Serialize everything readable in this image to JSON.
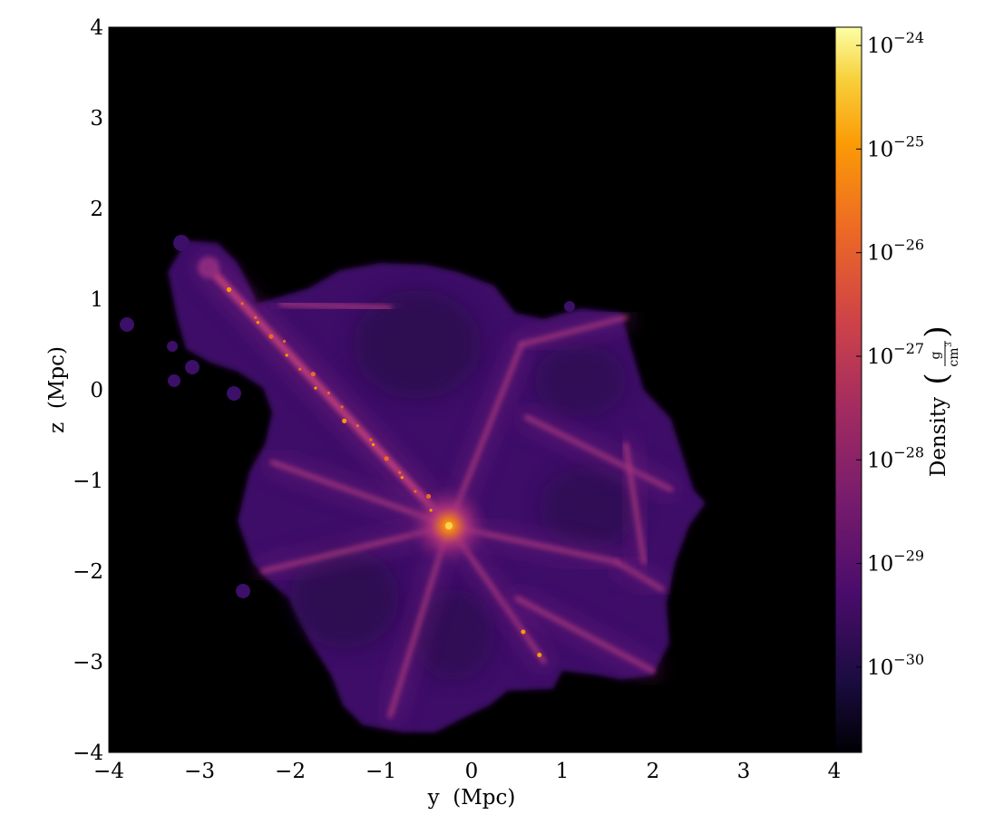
{
  "chart_data": {
    "type": "heatmap",
    "title": "",
    "xlabel": "y  (Mpc)",
    "ylabel": "z  (Mpc)",
    "xlim": [
      -4,
      4
    ],
    "ylim": [
      -4,
      4
    ],
    "x_ticks": [
      "−4",
      "−3",
      "−2",
      "−1",
      "0",
      "1",
      "2",
      "3",
      "4"
    ],
    "y_ticks": [
      "−4",
      "−3",
      "−2",
      "−1",
      "0",
      "1",
      "2",
      "3",
      "4"
    ],
    "colorbar": {
      "label": "Density",
      "unit_numerator": "g",
      "unit_denominator": "cm",
      "unit_exponent": "3",
      "scale": "log",
      "range": [
        1.5e-31,
        1.5e-24
      ],
      "tick_base": "10",
      "tick_exponents": [
        "−24",
        "−25",
        "−26",
        "−27",
        "−28",
        "−29",
        "−30"
      ],
      "colormap": "inferno"
    },
    "background_color": "#000000",
    "grid": false,
    "filaments": [
      {
        "from": [
          -2.9,
          1.35
        ],
        "to": [
          -0.25,
          -1.5
        ]
      },
      {
        "from": [
          -0.25,
          -1.5
        ],
        "to": [
          0.8,
          -3.0
        ]
      },
      {
        "from": [
          -0.25,
          -1.5
        ],
        "to": [
          -0.9,
          -3.6
        ]
      },
      {
        "from": [
          -0.25,
          -1.5
        ],
        "to": [
          -2.3,
          -2.0
        ]
      },
      {
        "from": [
          -0.25,
          -1.5
        ],
        "to": [
          0.55,
          0.5
        ]
      },
      {
        "from": [
          -0.25,
          -1.5
        ],
        "to": [
          1.6,
          -1.9
        ]
      },
      {
        "from": [
          1.6,
          -1.9
        ],
        "to": [
          2.1,
          -2.2
        ]
      },
      {
        "from": [
          -0.25,
          -1.5
        ],
        "to": [
          -2.2,
          -0.8
        ]
      },
      {
        "from": [
          0.55,
          0.5
        ],
        "to": [
          1.7,
          0.8
        ]
      },
      {
        "from": [
          -0.9,
          0.9
        ],
        "to": [
          -2.1,
          0.95
        ]
      },
      {
        "from": [
          0.6,
          -0.3
        ],
        "to": [
          2.2,
          -1.1
        ]
      },
      {
        "from": [
          0.5,
          -2.3
        ],
        "to": [
          2.0,
          -3.1
        ]
      },
      {
        "from": [
          1.7,
          -0.6
        ],
        "to": [
          1.9,
          -1.9
        ]
      }
    ]
  }
}
